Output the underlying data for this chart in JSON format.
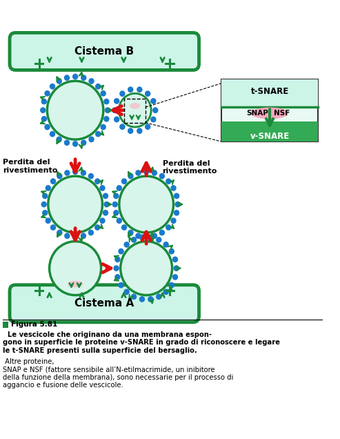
{
  "bg_color": "#ffffff",
  "cisterna_fill": "#ccf5e8",
  "cisterna_edge": "#1a8a3a",
  "cisterna_lw": 3.5,
  "vesicle_fill": "#d8f5ec",
  "vesicle_edge": "#1a8a3a",
  "vesicle_lw": 2.5,
  "coat_color": "#1a7acc",
  "snare_color": "#1a8a3a",
  "arrow_red": "#dd1111",
  "inset_bg": "#e8faf3",
  "inset_edge": "#333333",
  "title_text": "Cistema B",
  "bottom_text": "Cistema A",
  "label_perdita_left": "Perdita del\nrivestimento",
  "label_perdita_right": "Perdita del\nrivestimento",
  "snare_box_t": "t-SNARE",
  "snare_box_snap": "SNAP",
  "snare_box_nsf": "NSF",
  "snare_box_v": "v-SNARE",
  "caption_fig": "Figura 5.81",
  "fig_width": 4.93,
  "fig_height": 6.36
}
